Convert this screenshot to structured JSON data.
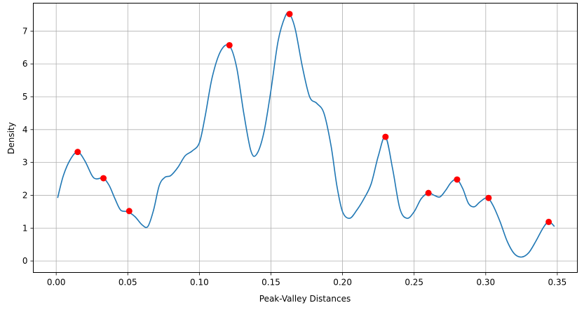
{
  "chart_data": {
    "type": "line",
    "title": "",
    "xlabel": "Peak-Valley Distances",
    "ylabel": "Density",
    "xlim": [
      -0.016,
      0.364
    ],
    "ylim": [
      -0.35,
      7.85
    ],
    "grid": true,
    "x_ticks": [
      0.0,
      0.05,
      0.1,
      0.15,
      0.2,
      0.25,
      0.3,
      0.35
    ],
    "x_tick_labels": [
      "0.00",
      "0.05",
      "0.10",
      "0.15",
      "0.20",
      "0.25",
      "0.30",
      "0.35"
    ],
    "y_ticks": [
      0,
      1,
      2,
      3,
      4,
      5,
      6,
      7
    ],
    "y_tick_labels": [
      "0",
      "1",
      "2",
      "3",
      "4",
      "5",
      "6",
      "7"
    ],
    "line_color": "#1f77b4",
    "marker_color": "#ff0000",
    "curve": {
      "x": [
        0.001,
        0.005,
        0.01,
        0.015,
        0.02,
        0.025,
        0.028,
        0.033,
        0.037,
        0.041,
        0.045,
        0.05,
        0.055,
        0.06,
        0.064,
        0.068,
        0.072,
        0.076,
        0.08,
        0.085,
        0.09,
        0.095,
        0.1,
        0.104,
        0.109,
        0.115,
        0.121,
        0.126,
        0.131,
        0.136,
        0.14,
        0.145,
        0.15,
        0.155,
        0.16,
        0.163,
        0.167,
        0.172,
        0.177,
        0.182,
        0.187,
        0.192,
        0.196,
        0.2,
        0.205,
        0.21,
        0.215,
        0.22,
        0.225,
        0.23,
        0.235,
        0.24,
        0.245,
        0.25,
        0.255,
        0.26,
        0.264,
        0.268,
        0.272,
        0.276,
        0.28,
        0.284,
        0.288,
        0.292,
        0.296,
        0.301,
        0.305,
        0.31,
        0.315,
        0.32,
        0.325,
        0.33,
        0.335,
        0.34,
        0.344,
        0.348
      ],
      "y": [
        1.92,
        2.6,
        3.1,
        3.32,
        3.05,
        2.6,
        2.5,
        2.52,
        2.3,
        1.9,
        1.55,
        1.5,
        1.35,
        1.1,
        1.05,
        1.55,
        2.3,
        2.55,
        2.6,
        2.85,
        3.2,
        3.35,
        3.6,
        4.4,
        5.6,
        6.4,
        6.55,
        5.9,
        4.5,
        3.35,
        3.25,
        3.9,
        5.2,
        6.7,
        7.45,
        7.52,
        7.05,
        5.9,
        5.0,
        4.8,
        4.5,
        3.5,
        2.3,
        1.5,
        1.3,
        1.55,
        1.9,
        2.35,
        3.2,
        3.78,
        2.8,
        1.6,
        1.3,
        1.5,
        1.9,
        2.07,
        2.0,
        1.95,
        2.15,
        2.4,
        2.48,
        2.2,
        1.75,
        1.65,
        1.8,
        1.92,
        1.7,
        1.2,
        0.6,
        0.22,
        0.12,
        0.25,
        0.6,
        1.0,
        1.2,
        1.05
      ]
    },
    "peaks": {
      "x": [
        0.015,
        0.033,
        0.051,
        0.121,
        0.163,
        0.23,
        0.26,
        0.28,
        0.302,
        0.344
      ],
      "y": [
        3.32,
        2.52,
        1.52,
        6.57,
        7.52,
        3.78,
        2.07,
        2.48,
        1.92,
        1.19
      ]
    }
  }
}
